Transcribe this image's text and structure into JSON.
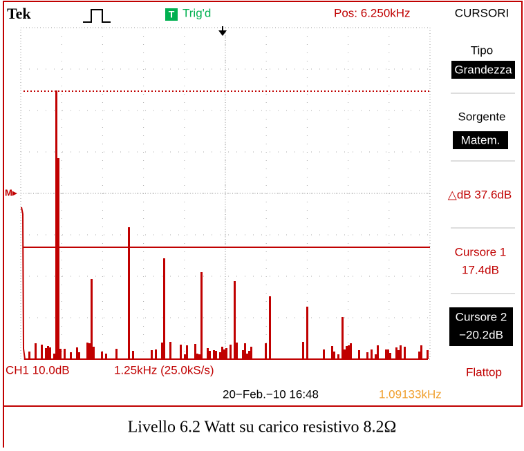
{
  "header": {
    "logo": "Tek",
    "trigger_icon": "T",
    "trigger_status": "Trig'd",
    "position": "Pos: 6.250kHz",
    "menu_title": "CURSORI"
  },
  "menu": {
    "type_label": "Tipo",
    "type_value": "Grandezza",
    "source_label": "Sorgente",
    "source_value": "Matem.",
    "delta": "△dB 37.6dB",
    "cursor1_label": "Cursore 1",
    "cursor1_value": "17.4dB",
    "cursor2_label": "Cursore 2",
    "cursor2_value": "−20.2dB"
  },
  "marker": "M▸",
  "footer": {
    "channel": "CH1 10.0dB",
    "timebase": "1.25kHz (25.0kS/s)",
    "window": "Flattop",
    "date": "20−Feb.−10 16:48",
    "frequency": "1.09133kHz"
  },
  "caption": "Livello 6.2 Watt su carico resistivo 8.2Ω"
}
